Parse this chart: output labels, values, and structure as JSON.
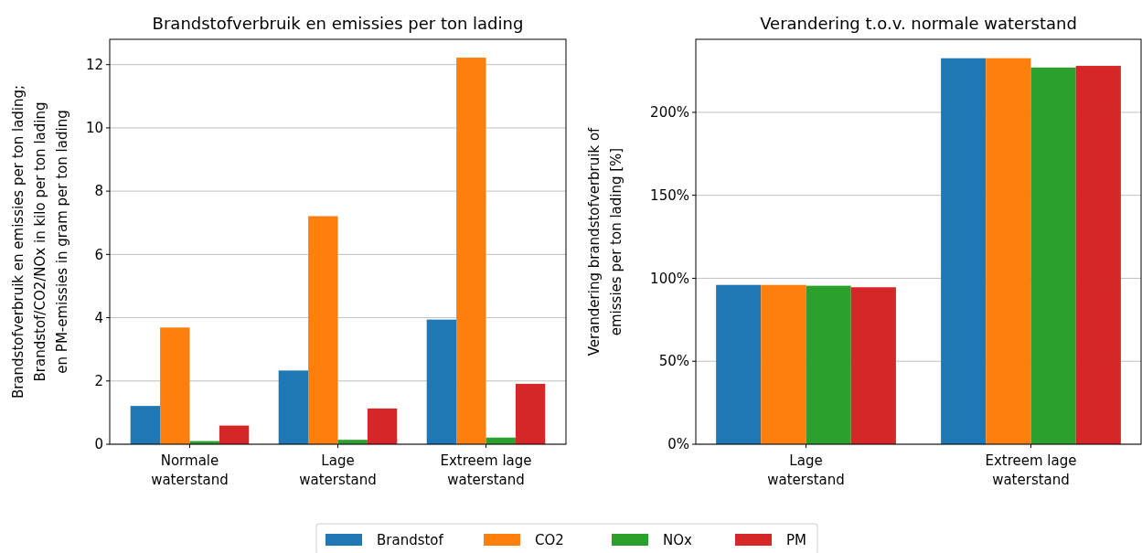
{
  "chart_data": [
    {
      "type": "bar",
      "title": "Brandstofverbruik en emissies per ton lading",
      "ylabel": "Brandstofverbruik en emissies per ton lading;\nBrandstof/CO2/NOx in kilo per ton lading\nen PM-emissies in gram per ton lading",
      "categories": [
        "Normale waterstand",
        "Lage waterstand",
        "Extreem lage waterstand"
      ],
      "ylim": [
        0,
        12.8
      ],
      "yticks": [
        0,
        2,
        4,
        6,
        8,
        10,
        12
      ],
      "grid": "y",
      "legend": "bottom",
      "series": [
        {
          "name": "Brandstof",
          "color": "#1f77b4",
          "values": [
            1.21,
            2.33,
            3.94
          ]
        },
        {
          "name": "CO2",
          "color": "#ff7f0e",
          "values": [
            3.69,
            7.21,
            12.22
          ]
        },
        {
          "name": "NOx",
          "color": "#2ca02c",
          "values": [
            0.1,
            0.14,
            0.21
          ]
        },
        {
          "name": "PM",
          "color": "#d62728",
          "values": [
            0.59,
            1.13,
            1.91
          ]
        }
      ]
    },
    {
      "type": "bar",
      "title": "Verandering t.o.v. normale waterstand",
      "ylabel": "Verandering brandstofverbruik of\nemissies per ton lading [%]",
      "categories": [
        "Lage waterstand",
        "Extreem lage waterstand"
      ],
      "ylim": [
        0,
        244
      ],
      "yticks": [
        {
          "value": 0,
          "label": "0%"
        },
        {
          "value": 50,
          "label": "50%"
        },
        {
          "value": 100,
          "label": "100%"
        },
        {
          "value": 150,
          "label": "150%"
        },
        {
          "value": 200,
          "label": "200%"
        }
      ],
      "grid": "y",
      "series": [
        {
          "color": "#1f77b4",
          "values": [
            96,
            232.6
          ]
        },
        {
          "color": "#ff7f0e",
          "values": [
            96,
            232.6
          ]
        },
        {
          "color": "#2ca02c",
          "values": [
            95.5,
            227
          ]
        },
        {
          "color": "#d62728",
          "values": [
            94.6,
            228
          ]
        }
      ]
    }
  ]
}
